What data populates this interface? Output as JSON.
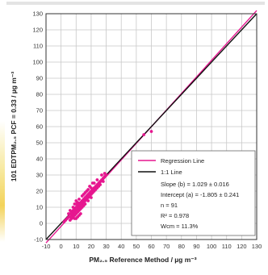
{
  "chart_data": {
    "type": "scatter",
    "xlabel": "PM₂.₅ Reference Method / µg m⁻³",
    "ylabel": "101 EDTPM₂.₅ PCF = 0.33 / µg m⁻³",
    "xlim": [
      -10,
      130
    ],
    "ylim": [
      -10,
      130
    ],
    "xticks": [
      -10,
      0,
      10,
      20,
      30,
      40,
      50,
      60,
      70,
      80,
      90,
      100,
      110,
      120,
      130
    ],
    "yticks": [
      -10,
      0,
      10,
      20,
      30,
      40,
      50,
      60,
      70,
      80,
      90,
      100,
      110,
      120,
      130
    ],
    "grid": true,
    "legend_position": "bottom-right",
    "series": [
      {
        "name": "data",
        "color": "#e6168f",
        "points": [
          [
            2,
            1
          ],
          [
            3,
            2
          ],
          [
            4,
            3
          ],
          [
            5,
            4
          ],
          [
            6,
            4
          ],
          [
            6,
            6
          ],
          [
            7,
            5
          ],
          [
            7,
            7
          ],
          [
            8,
            6
          ],
          [
            8,
            8
          ],
          [
            8,
            4
          ],
          [
            9,
            7
          ],
          [
            9,
            9
          ],
          [
            9,
            5
          ],
          [
            10,
            8
          ],
          [
            10,
            10
          ],
          [
            10,
            6
          ],
          [
            11,
            9
          ],
          [
            11,
            11
          ],
          [
            11,
            7
          ],
          [
            12,
            10
          ],
          [
            12,
            12
          ],
          [
            12,
            8
          ],
          [
            13,
            11
          ],
          [
            13,
            13
          ],
          [
            13,
            9
          ],
          [
            14,
            12
          ],
          [
            14,
            14
          ],
          [
            14,
            10
          ],
          [
            15,
            13
          ],
          [
            15,
            15
          ],
          [
            15,
            11
          ],
          [
            16,
            14
          ],
          [
            16,
            16
          ],
          [
            16,
            12
          ],
          [
            17,
            15
          ],
          [
            17,
            17
          ],
          [
            18,
            16
          ],
          [
            18,
            18
          ],
          [
            18,
            14
          ],
          [
            19,
            17
          ],
          [
            19,
            19
          ],
          [
            20,
            18
          ],
          [
            20,
            20
          ],
          [
            20,
            16
          ],
          [
            21,
            19
          ],
          [
            21,
            21
          ],
          [
            22,
            20
          ],
          [
            22,
            22
          ],
          [
            23,
            21
          ],
          [
            23,
            23
          ],
          [
            24,
            22
          ],
          [
            24,
            24
          ],
          [
            25,
            23
          ],
          [
            25,
            25
          ],
          [
            26,
            24
          ],
          [
            26,
            26
          ],
          [
            27,
            27
          ],
          [
            28,
            28
          ],
          [
            28,
            26
          ],
          [
            29,
            29
          ],
          [
            30,
            30
          ],
          [
            9,
            12
          ],
          [
            10,
            14
          ],
          [
            12,
            15
          ],
          [
            14,
            17
          ],
          [
            17,
            20
          ],
          [
            6,
            8
          ],
          [
            7,
            3
          ],
          [
            10,
            3
          ],
          [
            11,
            4
          ],
          [
            12,
            5
          ],
          [
            13,
            6
          ],
          [
            8,
            10
          ],
          [
            10,
            12
          ],
          [
            11,
            13
          ],
          [
            15,
            18
          ],
          [
            18,
            21
          ],
          [
            20,
            22
          ],
          [
            22,
            25
          ],
          [
            24,
            27
          ],
          [
            27,
            30
          ],
          [
            29,
            31
          ],
          [
            5,
            6
          ],
          [
            6,
            2
          ],
          [
            9,
            3
          ],
          [
            16,
            19
          ],
          [
            19,
            23
          ],
          [
            21,
            25
          ],
          [
            55,
            55
          ],
          [
            60,
            57
          ]
        ]
      }
    ],
    "lines": [
      {
        "name": "Regression Line",
        "color": "#e6168f",
        "slope": 1.029,
        "intercept": -1.805
      },
      {
        "name": "1:1 Line",
        "color": "#111111",
        "slope": 1,
        "intercept": 0
      }
    ],
    "legend": {
      "entries": [
        {
          "label": "Regression Line",
          "color": "#e6168f"
        },
        {
          "label": "1:1 Line",
          "color": "#111111"
        }
      ],
      "stats": [
        "Slope (b) = 1.029 ± 0.016",
        "Intercept (a) = -1.805 ± 0.241",
        "n = 91",
        "R² = 0.978",
        "Wcm = 11.3%"
      ]
    }
  }
}
